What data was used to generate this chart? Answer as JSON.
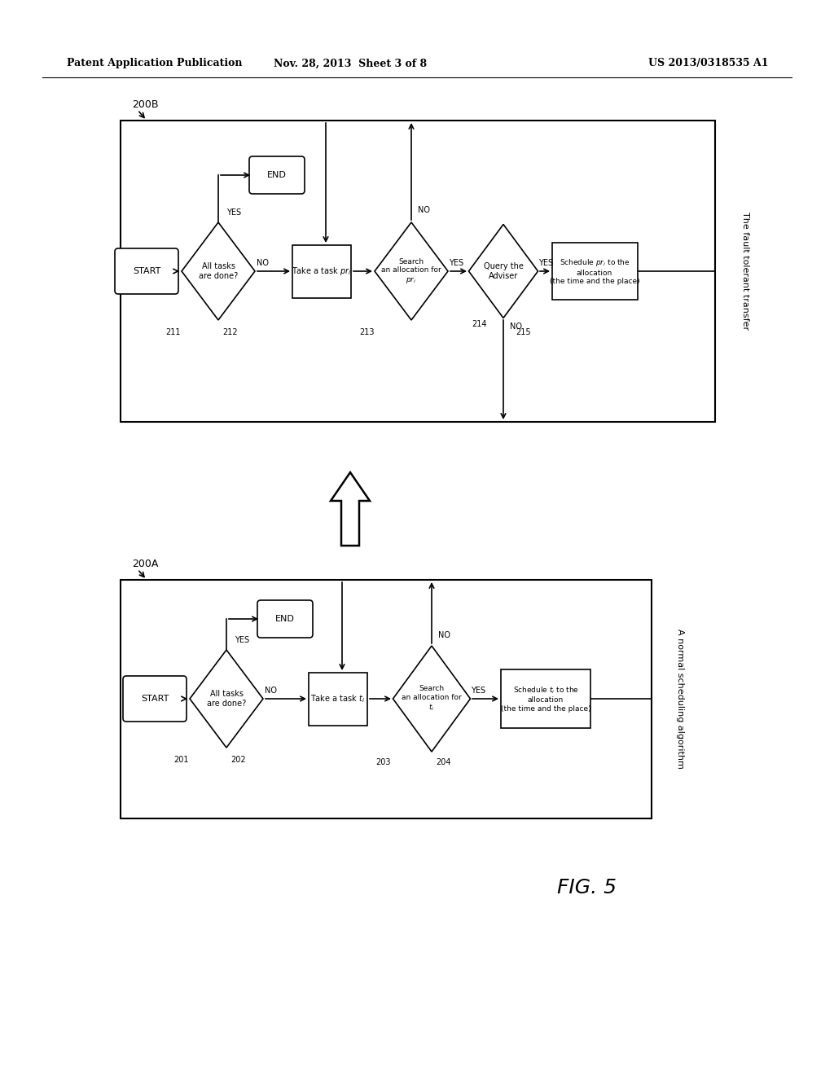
{
  "bg_color": "#ffffff",
  "header_left": "Patent Application Publication",
  "header_mid": "Nov. 28, 2013  Sheet 3 of 8",
  "header_right": "US 2013/0318535 A1",
  "fig_label": "FIG. 5",
  "diagram_A_label": "200A",
  "diagram_B_label": "200B",
  "diagram_A_caption": "A normal scheduling algorithm",
  "diagram_B_caption": "The fault tolerant transfer",
  "label_201": "201",
  "label_202": "202",
  "label_203": "203",
  "label_204": "204",
  "label_211": "211",
  "label_212": "212",
  "label_213": "213",
  "label_214": "214",
  "label_215": "215"
}
